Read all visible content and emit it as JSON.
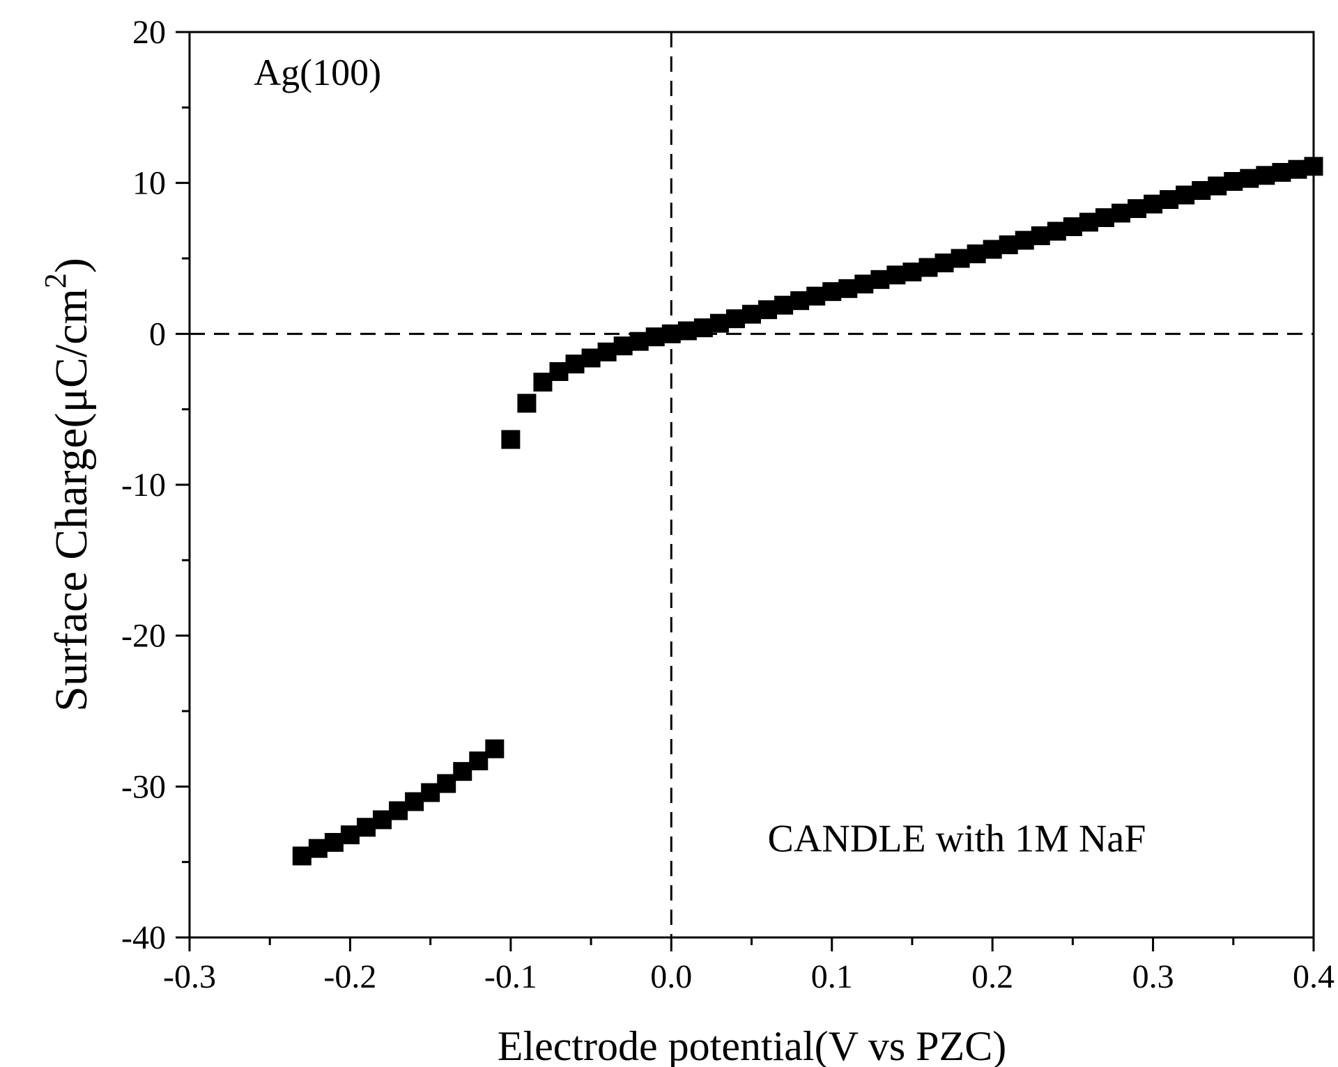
{
  "chart_data": {
    "type": "scatter",
    "title": "",
    "xlabel": "Electrode potential(V vs PZC)",
    "ylabel": "Surface Charge(μC/cm",
    "ylabel_superscript": "2",
    "ylabel_close": ")",
    "xlim": [
      -0.3,
      0.4
    ],
    "ylim": [
      -40,
      20
    ],
    "x_ticks": [
      -0.3,
      -0.2,
      -0.1,
      0.0,
      0.1,
      0.2,
      0.3,
      0.4
    ],
    "x_tick_labels": [
      "-0.3",
      "-0.2",
      "-0.1",
      "0.0",
      "0.1",
      "0.2",
      "0.3",
      "0.4"
    ],
    "y_ticks": [
      -40,
      -30,
      -20,
      -10,
      0,
      10,
      20
    ],
    "y_tick_labels": [
      "-40",
      "-30",
      "-20",
      "-10",
      "0",
      "10",
      "20"
    ],
    "x_minor_step": 0.05,
    "y_minor_step": 5,
    "reference_lines": [
      {
        "axis": "x",
        "value": 0,
        "style": "dashed"
      },
      {
        "axis": "y",
        "value": 0,
        "style": "dashed"
      }
    ],
    "annotations": [
      {
        "text": "Ag(100)",
        "x": -0.26,
        "y": 16.5
      },
      {
        "text": "CANDLE with 1M NaF",
        "x": 0.06,
        "y": -34.3
      }
    ],
    "series": [
      {
        "name": "Ag(100)",
        "marker": "square",
        "color": "#000000",
        "x": [
          -0.23,
          -0.22,
          -0.21,
          -0.2,
          -0.19,
          -0.18,
          -0.17,
          -0.16,
          -0.15,
          -0.14,
          -0.13,
          -0.12,
          -0.11,
          -0.1,
          -0.09,
          -0.08,
          -0.07,
          -0.06,
          -0.05,
          -0.04,
          -0.03,
          -0.02,
          -0.01,
          0.0,
          0.01,
          0.02,
          0.03,
          0.04,
          0.05,
          0.06,
          0.07,
          0.08,
          0.09,
          0.1,
          0.11,
          0.12,
          0.13,
          0.14,
          0.15,
          0.16,
          0.17,
          0.18,
          0.19,
          0.2,
          0.21,
          0.22,
          0.23,
          0.24,
          0.25,
          0.26,
          0.27,
          0.28,
          0.29,
          0.3,
          0.31,
          0.32,
          0.33,
          0.34,
          0.35,
          0.36,
          0.37,
          0.38,
          0.39,
          0.4
        ],
        "y": [
          -34.6,
          -34.1,
          -33.7,
          -33.2,
          -32.7,
          -32.2,
          -31.6,
          -31.0,
          -30.4,
          -29.8,
          -29.0,
          -28.3,
          -27.5,
          -7.0,
          -4.6,
          -3.2,
          -2.5,
          -2.0,
          -1.6,
          -1.2,
          -0.8,
          -0.5,
          -0.2,
          0.0,
          0.2,
          0.4,
          0.7,
          1.0,
          1.3,
          1.6,
          1.9,
          2.2,
          2.5,
          2.8,
          3.0,
          3.3,
          3.6,
          3.9,
          4.1,
          4.4,
          4.7,
          5.0,
          5.3,
          5.6,
          5.9,
          6.2,
          6.5,
          6.8,
          7.1,
          7.4,
          7.7,
          8.0,
          8.3,
          8.6,
          8.9,
          9.2,
          9.5,
          9.8,
          10.1,
          10.3,
          10.5,
          10.7,
          10.9,
          11.1
        ]
      }
    ]
  }
}
